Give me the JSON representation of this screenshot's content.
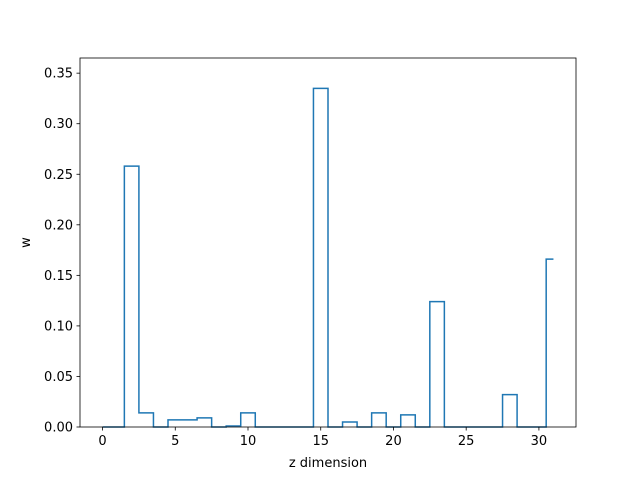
{
  "chart_data": {
    "type": "bar",
    "style": "step-outline",
    "title": "",
    "xlabel": "z dimension",
    "ylabel": "w",
    "xlim": [
      -1.55,
      32.55
    ],
    "ylim": [
      0,
      0.365
    ],
    "xticks": [
      0,
      5,
      10,
      15,
      20,
      25,
      30
    ],
    "yticks": [
      0.0,
      0.05,
      0.1,
      0.15,
      0.2,
      0.25,
      0.3,
      0.35
    ],
    "ytick_labels": [
      "0.00",
      "0.05",
      "0.10",
      "0.15",
      "0.20",
      "0.25",
      "0.30",
      "0.35"
    ],
    "x": [
      0,
      1,
      2,
      3,
      4,
      5,
      6,
      7,
      8,
      9,
      10,
      11,
      12,
      13,
      14,
      15,
      16,
      17,
      18,
      19,
      20,
      21,
      22,
      23,
      24,
      25,
      26,
      27,
      28,
      29,
      30,
      31
    ],
    "values": [
      0.0,
      0.0,
      0.258,
      0.014,
      0.0,
      0.007,
      0.007,
      0.009,
      0.0,
      0.001,
      0.014,
      0.0,
      0.0,
      0.0,
      0.0,
      0.335,
      0.0,
      0.005,
      0.0,
      0.014,
      0.0,
      0.012,
      0.0,
      0.124,
      0.0,
      0.0,
      0.0,
      0.0,
      0.032,
      0.0,
      0.0,
      0.166
    ],
    "grid": false,
    "color": "#1f77b4"
  }
}
